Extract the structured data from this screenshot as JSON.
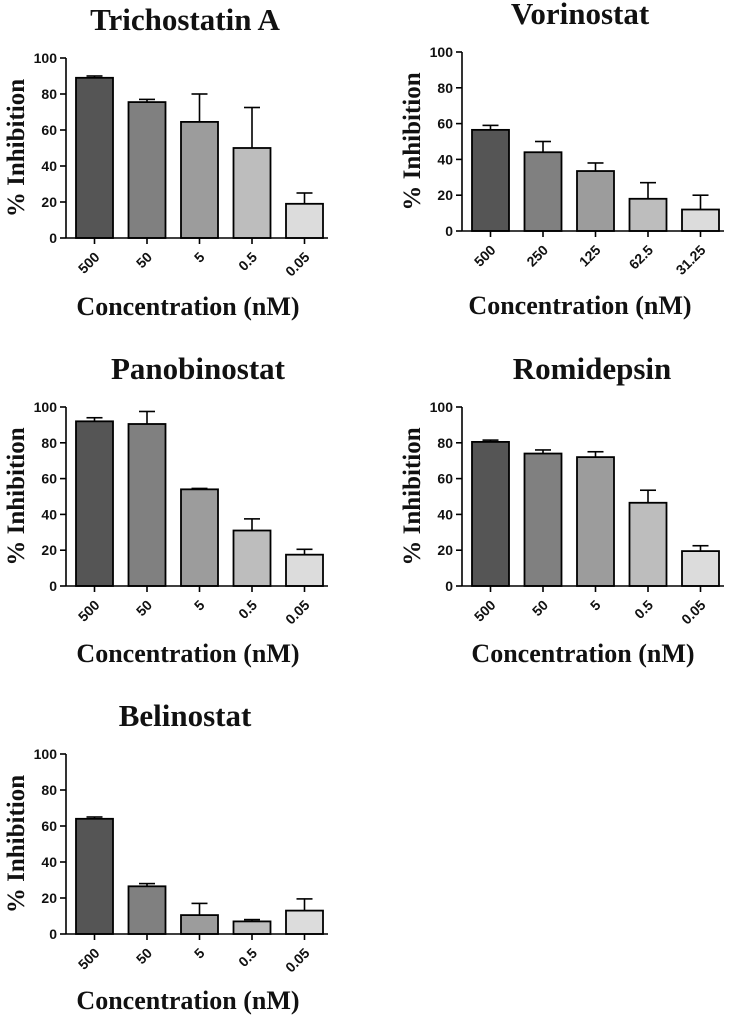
{
  "chart_data": [
    {
      "type": "bar",
      "title": "Trichostatin  A",
      "xlabel": "Concentration  (nM)",
      "ylabel": "% Inhibition",
      "ylim": [
        0,
        100
      ],
      "yticks": [
        0,
        20,
        40,
        60,
        80,
        100
      ],
      "categories": [
        "500",
        "50",
        "5",
        "0.5",
        "0.05"
      ],
      "values": [
        89,
        75.5,
        64.5,
        50,
        19
      ],
      "errors": [
        1,
        1.5,
        15.5,
        22.5,
        6
      ],
      "bar_colors": [
        "#555555",
        "#808080",
        "#9c9c9c",
        "#bdbdbd",
        "#dcdcdc"
      ],
      "grid": false
    },
    {
      "type": "bar",
      "title": "Vorinostat",
      "xlabel": "Concentration  (nM)",
      "ylabel": "% Inhibition",
      "ylim": [
        0,
        100
      ],
      "yticks": [
        0,
        20,
        40,
        60,
        80,
        100
      ],
      "categories": [
        "500",
        "250",
        "125",
        "62.5",
        "31.25"
      ],
      "values": [
        56.5,
        44,
        33.5,
        18,
        12
      ],
      "errors": [
        2.5,
        6,
        4.5,
        9,
        8
      ],
      "bar_colors": [
        "#555555",
        "#808080",
        "#9c9c9c",
        "#bdbdbd",
        "#dcdcdc"
      ],
      "grid": false
    },
    {
      "type": "bar",
      "title": "Panobinostat",
      "xlabel": "Concentration  (nM)",
      "ylabel": "% Inhibition",
      "ylim": [
        0,
        100
      ],
      "yticks": [
        0,
        20,
        40,
        60,
        80,
        100
      ],
      "categories": [
        "500",
        "50",
        "5",
        "0.5",
        "0.05"
      ],
      "values": [
        92,
        90.5,
        54,
        31,
        17.5
      ],
      "errors": [
        2,
        7,
        0.5,
        6.5,
        3
      ],
      "bar_colors": [
        "#555555",
        "#808080",
        "#9c9c9c",
        "#bdbdbd",
        "#dcdcdc"
      ],
      "grid": false
    },
    {
      "type": "bar",
      "title": "Romidepsin",
      "xlabel": "Concentration  (nM)",
      "ylabel": "% Inhibition",
      "ylim": [
        0,
        100
      ],
      "yticks": [
        0,
        20,
        40,
        60,
        80,
        100
      ],
      "categories": [
        "500",
        "50",
        "5",
        "0.5",
        "0.05"
      ],
      "values": [
        80.5,
        74,
        72,
        46.5,
        19.5
      ],
      "errors": [
        1,
        2,
        3,
        7,
        3
      ],
      "bar_colors": [
        "#555555",
        "#808080",
        "#9c9c9c",
        "#bdbdbd",
        "#dcdcdc"
      ],
      "grid": false
    },
    {
      "type": "bar",
      "title": "Belinostat",
      "xlabel": "Concentration  (nM)",
      "ylabel": "% Inhibition",
      "ylim": [
        0,
        100
      ],
      "yticks": [
        0,
        20,
        40,
        60,
        80,
        100
      ],
      "categories": [
        "500",
        "50",
        "5",
        "0.5",
        "0.05"
      ],
      "values": [
        64,
        26.5,
        10.5,
        7,
        13
      ],
      "errors": [
        1,
        1.5,
        6.5,
        1,
        6.5
      ],
      "bar_colors": [
        "#555555",
        "#808080",
        "#9c9c9c",
        "#bdbdbd",
        "#dcdcdc"
      ],
      "grid": false
    }
  ]
}
